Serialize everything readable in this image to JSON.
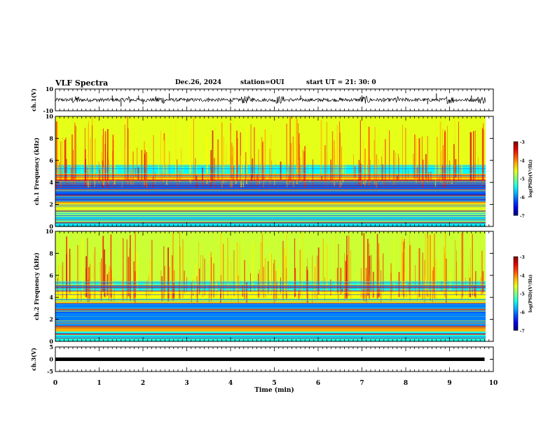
{
  "header": {
    "title": "VLF Spectra",
    "date": "Dec.26, 2024",
    "station": "station=OUI",
    "start": "start  UT  =   21: 30: 0"
  },
  "chart_data": [
    {
      "type": "line",
      "title": "",
      "ylabel": "ch.1(V)",
      "ylim": [
        -10,
        10
      ],
      "y_tick_labels": [
        "10",
        "-10"
      ],
      "x": [
        0,
        0.5,
        1.0,
        1.3,
        1.5,
        1.9,
        2.0,
        2.6,
        3.0,
        3.5,
        4.0,
        4.5,
        5.0,
        5.6,
        6.0,
        6.5,
        7.0,
        7.5,
        8.0,
        8.5,
        8.7,
        9.0,
        9.5,
        9.8
      ],
      "y": [
        0,
        1,
        -1,
        2,
        -3,
        2,
        -2,
        3,
        -1,
        1,
        -2,
        1,
        -1,
        2,
        -1,
        1,
        2,
        -1,
        1,
        -2,
        3,
        -1,
        2,
        0
      ]
    },
    {
      "type": "heatmap",
      "title": "",
      "ylabel": "ch.1  Frequency  (kHz)",
      "ylim": [
        0,
        10
      ],
      "y_ticks": [
        0,
        2,
        4,
        6,
        8,
        10
      ],
      "colorbar": {
        "label": "log(PSD)(V²/Hz)",
        "range": [
          -7,
          -3
        ],
        "ticks": [
          "-3",
          "-4",
          "-5",
          "-6",
          "-7"
        ],
        "colormap": "jet"
      },
      "bands_khz": [
        {
          "from": 0.0,
          "to": 0.9,
          "level": -5.6
        },
        {
          "from": 0.9,
          "to": 1.3,
          "level": -5.0
        },
        {
          "from": 1.3,
          "to": 2.2,
          "level": -4.6
        },
        {
          "from": 2.2,
          "to": 4.2,
          "level": -6.1
        },
        {
          "from": 4.2,
          "to": 4.8,
          "level": -4.4
        },
        {
          "from": 4.8,
          "to": 5.6,
          "level": -5.5
        },
        {
          "from": 5.6,
          "to": 10.0,
          "level": -4.6
        }
      ]
    },
    {
      "type": "heatmap",
      "title": "",
      "ylabel": "ch.2  Frequency  (kHz)",
      "ylim": [
        0,
        10
      ],
      "y_ticks": [
        0,
        2,
        4,
        6,
        8,
        10
      ],
      "colorbar": {
        "label": "log(PSD)(V²/Hz)",
        "range": [
          -7,
          -3
        ],
        "ticks": [
          "-3",
          "-4",
          "-5",
          "-6",
          "-7"
        ],
        "colormap": "jet"
      },
      "bands_khz": [
        {
          "from": 0.0,
          "to": 0.9,
          "level": -5.4
        },
        {
          "from": 0.9,
          "to": 1.4,
          "level": -4.2
        },
        {
          "from": 1.4,
          "to": 3.4,
          "level": -6.0
        },
        {
          "from": 3.4,
          "to": 4.6,
          "level": -4.5
        },
        {
          "from": 4.6,
          "to": 5.5,
          "level": -5.4
        },
        {
          "from": 5.5,
          "to": 10.0,
          "level": -4.7
        }
      ]
    },
    {
      "type": "line",
      "title": "",
      "ylabel": "ch.3(V)",
      "ylim": [
        -5,
        5
      ],
      "y_tick_labels": [
        "5",
        "0",
        "-5"
      ],
      "x": [
        0,
        9.8
      ],
      "y": [
        0,
        0
      ]
    }
  ],
  "x_axis": {
    "label": "Time  (min)",
    "range": [
      0,
      10
    ],
    "tick_labels": [
      "0",
      "1",
      "2",
      "3",
      "4",
      "5",
      "6",
      "7",
      "8",
      "9",
      "10"
    ]
  }
}
